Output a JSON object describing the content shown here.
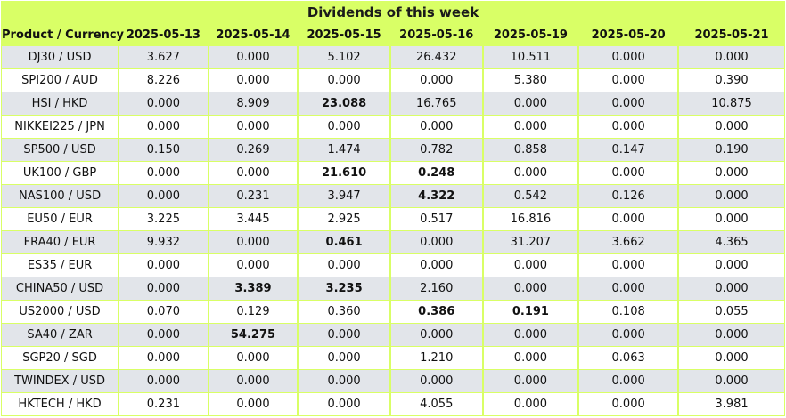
{
  "title": "Dividends of this week",
  "columns": [
    "Product / Currency",
    "2025-05-13",
    "2025-05-14",
    "2025-05-15",
    "2025-05-16",
    "2025-05-19",
    "2025-05-20",
    "2025-05-21"
  ],
  "rows": [
    {
      "product": "DJ30 / USD",
      "values": [
        "3.627",
        "0.000",
        "5.102",
        "26.432",
        "10.511",
        "0.000",
        "0.000"
      ],
      "bold": []
    },
    {
      "product": "SPI200 / AUD",
      "values": [
        "8.226",
        "0.000",
        "0.000",
        "0.000",
        "5.380",
        "0.000",
        "0.390"
      ],
      "bold": []
    },
    {
      "product": "HSI / HKD",
      "values": [
        "0.000",
        "8.909",
        "23.088",
        "16.765",
        "0.000",
        "0.000",
        "10.875"
      ],
      "bold": [
        2
      ]
    },
    {
      "product": "NIKKEI225 / JPN",
      "values": [
        "0.000",
        "0.000",
        "0.000",
        "0.000",
        "0.000",
        "0.000",
        "0.000"
      ],
      "bold": []
    },
    {
      "product": "SP500 / USD",
      "values": [
        "0.150",
        "0.269",
        "1.474",
        "0.782",
        "0.858",
        "0.147",
        "0.190"
      ],
      "bold": []
    },
    {
      "product": "UK100 / GBP",
      "values": [
        "0.000",
        "0.000",
        "21.610",
        "0.248",
        "0.000",
        "0.000",
        "0.000"
      ],
      "bold": [
        2,
        3
      ]
    },
    {
      "product": "NAS100 / USD",
      "values": [
        "0.000",
        "0.231",
        "3.947",
        "4.322",
        "0.542",
        "0.126",
        "0.000"
      ],
      "bold": [
        3
      ]
    },
    {
      "product": "EU50 / EUR",
      "values": [
        "3.225",
        "3.445",
        "2.925",
        "0.517",
        "16.816",
        "0.000",
        "0.000"
      ],
      "bold": []
    },
    {
      "product": "FRA40 / EUR",
      "values": [
        "9.932",
        "0.000",
        "0.461",
        "0.000",
        "31.207",
        "3.662",
        "4.365"
      ],
      "bold": [
        2
      ]
    },
    {
      "product": "ES35 / EUR",
      "values": [
        "0.000",
        "0.000",
        "0.000",
        "0.000",
        "0.000",
        "0.000",
        "0.000"
      ],
      "bold": []
    },
    {
      "product": "CHINA50 / USD",
      "values": [
        "0.000",
        "3.389",
        "3.235",
        "2.160",
        "0.000",
        "0.000",
        "0.000"
      ],
      "bold": [
        1,
        2
      ]
    },
    {
      "product": "US2000 / USD",
      "values": [
        "0.070",
        "0.129",
        "0.360",
        "0.386",
        "0.191",
        "0.108",
        "0.055"
      ],
      "bold": [
        3,
        4
      ]
    },
    {
      "product": "SA40 / ZAR",
      "values": [
        "0.000",
        "54.275",
        "0.000",
        "0.000",
        "0.000",
        "0.000",
        "0.000"
      ],
      "bold": [
        1
      ]
    },
    {
      "product": "SGP20 / SGD",
      "values": [
        "0.000",
        "0.000",
        "0.000",
        "1.210",
        "0.000",
        "0.063",
        "0.000"
      ],
      "bold": []
    },
    {
      "product": "TWINDEX / USD",
      "values": [
        "0.000",
        "0.000",
        "0.000",
        "0.000",
        "0.000",
        "0.000",
        "0.000"
      ],
      "bold": []
    },
    {
      "product": "HKTECH / HKD",
      "values": [
        "0.231",
        "0.000",
        "0.000",
        "4.055",
        "0.000",
        "0.000",
        "3.981"
      ],
      "bold": []
    }
  ],
  "colors": {
    "header_background": "#d9ff66",
    "row_stripe": "#e2e5ea",
    "row_plain": "#ffffff"
  }
}
